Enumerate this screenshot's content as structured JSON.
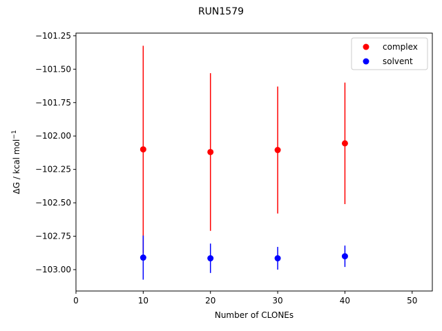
{
  "chart_data": {
    "type": "scatter",
    "title": "RUN1579",
    "xlabel": "Number of CLONEs",
    "ylabel": "ΔG / kcal mol",
    "ylabel_superscript": "−1",
    "xlim": [
      0,
      53
    ],
    "ylim": [
      -103.16,
      -101.23
    ],
    "xticks": [
      0,
      10,
      20,
      30,
      40,
      50
    ],
    "xtick_labels": [
      "0",
      "10",
      "20",
      "30",
      "40",
      "50"
    ],
    "yticks": [
      -101.25,
      -101.5,
      -101.75,
      -102.0,
      -102.25,
      -102.5,
      -102.75,
      -103.0
    ],
    "ytick_labels": [
      "−101.25",
      "−101.50",
      "−101.75",
      "−102.00",
      "−102.25",
      "−102.50",
      "−102.75",
      "−103.00"
    ],
    "grid": false,
    "legend_position": "top-right",
    "series": [
      {
        "name": "complex",
        "color": "#ff0000",
        "x": [
          10,
          20,
          30,
          40
        ],
        "y": [
          -102.1,
          -102.12,
          -102.105,
          -102.055
        ],
        "err": [
          0.775,
          0.59,
          0.475,
          0.455
        ]
      },
      {
        "name": "solvent",
        "color": "#0000ff",
        "x": [
          10,
          20,
          30,
          40
        ],
        "y": [
          -102.91,
          -102.915,
          -102.915,
          -102.9
        ],
        "err": [
          0.165,
          0.11,
          0.085,
          0.08
        ]
      }
    ]
  }
}
